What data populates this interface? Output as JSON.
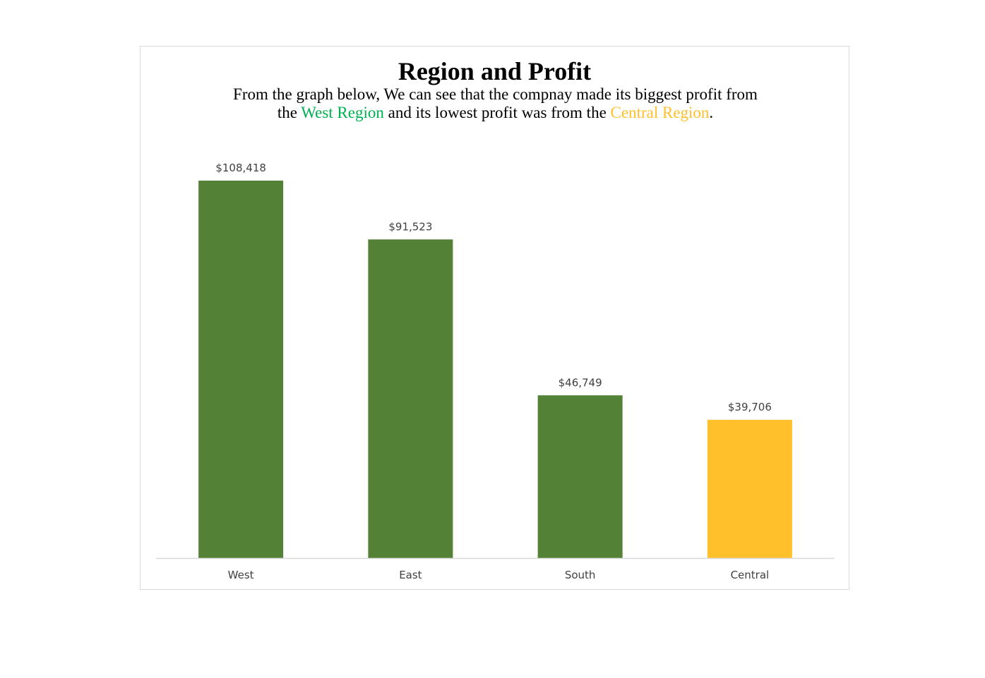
{
  "chart_data": {
    "type": "bar",
    "title": "Region and Profit",
    "subtitle": {
      "line1": "From the graph below, We can see that the compnay made its biggest profit from",
      "line2_prefix": "the ",
      "highlight_high": "West Region",
      "line2_middle": " and its lowest profit was from the ",
      "highlight_low": "Central Region",
      "line2_suffix": "."
    },
    "categories": [
      "West",
      "East",
      "South",
      "Central"
    ],
    "values": [
      108418,
      91523,
      46749,
      39706
    ],
    "value_labels": [
      "$108,418",
      "$91,523",
      "$46,749",
      "$39,706"
    ],
    "bar_colors": [
      "#538135",
      "#538135",
      "#538135",
      "#FFC02B"
    ],
    "highlight_colors": {
      "high": "#00B050",
      "low": "#FFC02B"
    },
    "ylim": [
      0,
      115000
    ],
    "grid": false,
    "legend": "none",
    "xlabel": "",
    "ylabel": ""
  }
}
